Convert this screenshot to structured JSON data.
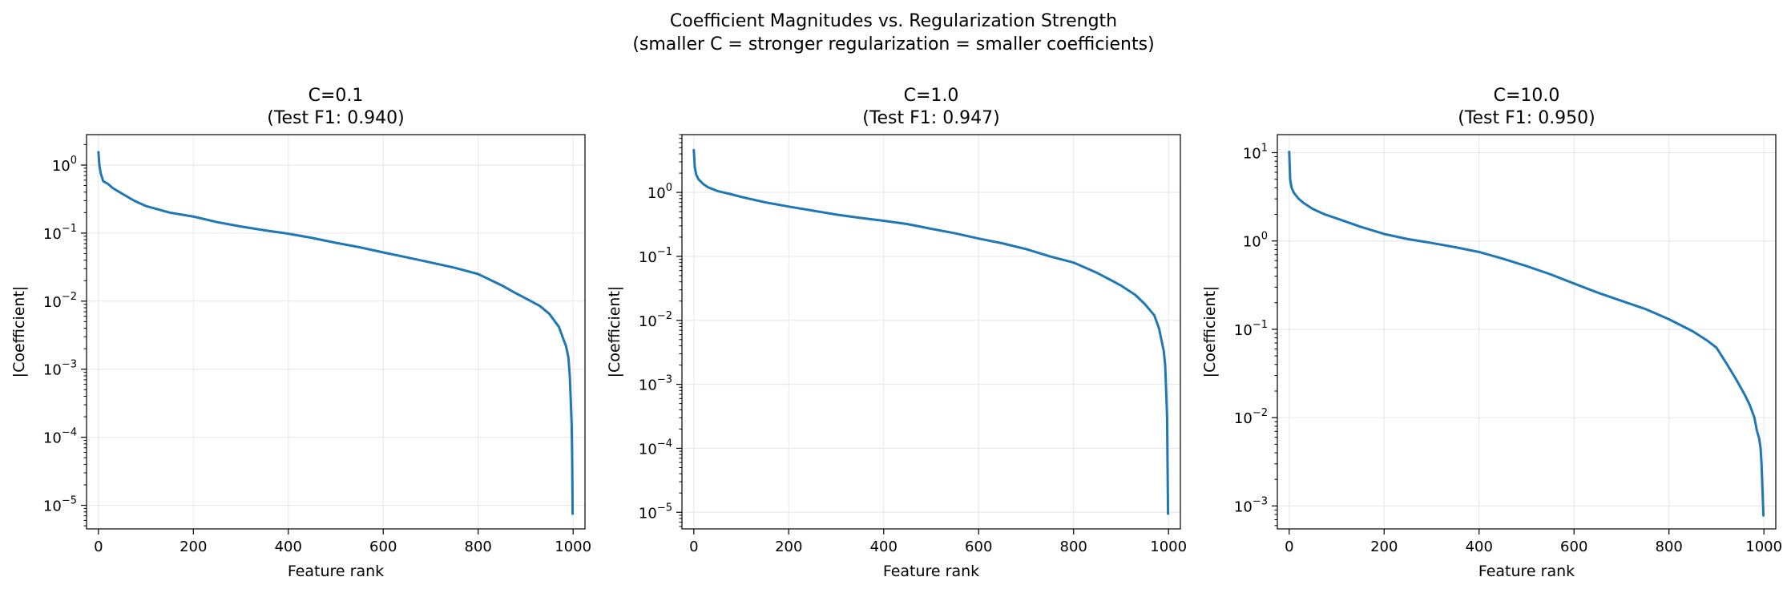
{
  "figure": {
    "title_line1": "Coefficient Magnitudes vs. Regularization Strength",
    "title_line2": "(smaller C = stronger regularization = smaller coefficients)"
  },
  "colors": {
    "line": "#1f77b4",
    "grid": "#e6e6e6",
    "axis": "#000000"
  },
  "chart_data": [
    {
      "type": "line",
      "title_line1": "C=0.1",
      "title_line2": "(Test F1: 0.940)",
      "xlabel": "Feature rank",
      "ylabel": "|Coefficient|",
      "yscale": "log",
      "xlim": [
        -25,
        1025
      ],
      "ylim": [
        4.5e-06,
        2.8
      ],
      "xticks": [
        0,
        200,
        400,
        600,
        800,
        1000
      ],
      "yticks": [
        1e-05,
        0.0001,
        0.001,
        0.01,
        0.1,
        1
      ],
      "ytick_exponents": [
        "−5",
        "−4",
        "−3",
        "−2",
        "−1",
        "0"
      ],
      "grid": true,
      "series": [
        {
          "x": [
            0,
            2,
            5,
            10,
            20,
            30,
            50,
            75,
            100,
            150,
            200,
            250,
            300,
            350,
            400,
            450,
            500,
            550,
            600,
            650,
            700,
            750,
            800,
            850,
            880,
            900,
            930,
            950,
            970,
            980,
            985,
            990,
            993,
            995,
            997,
            998,
            999
          ],
          "y": [
            1.55,
            1.0,
            0.75,
            0.58,
            0.53,
            0.46,
            0.38,
            0.3,
            0.25,
            0.2,
            0.175,
            0.145,
            0.125,
            0.11,
            0.098,
            0.085,
            0.072,
            0.062,
            0.052,
            0.044,
            0.037,
            0.031,
            0.025,
            0.017,
            0.013,
            0.011,
            0.0085,
            0.0065,
            0.0042,
            0.0027,
            0.0022,
            0.0015,
            0.0008,
            0.00035,
            0.00015,
            5e-05,
            7.5e-06
          ]
        }
      ]
    },
    {
      "type": "line",
      "title_line1": "C=1.0",
      "title_line2": "(Test F1: 0.947)",
      "xlabel": "Feature rank",
      "ylabel": "|Coefficient|",
      "yscale": "log",
      "xlim": [
        -25,
        1025
      ],
      "ylim": [
        5.5e-06,
        8.0
      ],
      "xticks": [
        0,
        200,
        400,
        600,
        800,
        1000
      ],
      "yticks": [
        1e-05,
        0.0001,
        0.001,
        0.01,
        0.1,
        1
      ],
      "ytick_exponents": [
        "−5",
        "−4",
        "−3",
        "−2",
        "−1",
        "0"
      ],
      "grid": true,
      "series": [
        {
          "x": [
            0,
            2,
            5,
            10,
            20,
            30,
            50,
            75,
            100,
            150,
            200,
            250,
            300,
            350,
            400,
            450,
            500,
            550,
            600,
            650,
            700,
            750,
            800,
            850,
            880,
            900,
            930,
            950,
            970,
            980,
            985,
            990,
            993,
            995,
            997,
            998,
            999
          ],
          "y": [
            4.6,
            2.5,
            1.9,
            1.6,
            1.35,
            1.2,
            1.05,
            0.95,
            0.85,
            0.7,
            0.6,
            0.52,
            0.45,
            0.4,
            0.36,
            0.32,
            0.27,
            0.23,
            0.19,
            0.16,
            0.13,
            0.1,
            0.08,
            0.055,
            0.042,
            0.035,
            0.025,
            0.018,
            0.012,
            0.0075,
            0.005,
            0.0033,
            0.002,
            0.0008,
            0.0003,
            5e-05,
            9.5e-06
          ]
        }
      ]
    },
    {
      "type": "line",
      "title_line1": "C=10.0",
      "title_line2": "(Test F1: 0.950)",
      "xlabel": "Feature rank",
      "ylabel": "|Coefficient|",
      "yscale": "log",
      "xlim": [
        -25,
        1025
      ],
      "ylim": [
        0.00055,
        16.0
      ],
      "xticks": [
        0,
        200,
        400,
        600,
        800,
        1000
      ],
      "yticks": [
        0.001,
        0.01,
        0.1,
        1,
        10
      ],
      "ytick_exponents": [
        "−3",
        "−2",
        "−1",
        "0",
        "1"
      ],
      "grid": true,
      "series": [
        {
          "x": [
            0,
            2,
            5,
            10,
            20,
            30,
            50,
            75,
            100,
            150,
            200,
            250,
            300,
            350,
            400,
            450,
            500,
            550,
            600,
            650,
            700,
            750,
            800,
            850,
            880,
            900,
            920,
            940,
            960,
            970,
            980,
            985,
            990,
            993,
            995,
            997,
            999
          ],
          "y": [
            10.2,
            5.0,
            4.0,
            3.5,
            3.0,
            2.7,
            2.3,
            2.0,
            1.8,
            1.45,
            1.2,
            1.05,
            0.95,
            0.85,
            0.75,
            0.63,
            0.52,
            0.42,
            0.33,
            0.26,
            0.21,
            0.17,
            0.13,
            0.095,
            0.075,
            0.062,
            0.042,
            0.028,
            0.018,
            0.014,
            0.01,
            0.0072,
            0.0058,
            0.0045,
            0.003,
            0.0015,
            0.00078
          ]
        }
      ]
    }
  ]
}
